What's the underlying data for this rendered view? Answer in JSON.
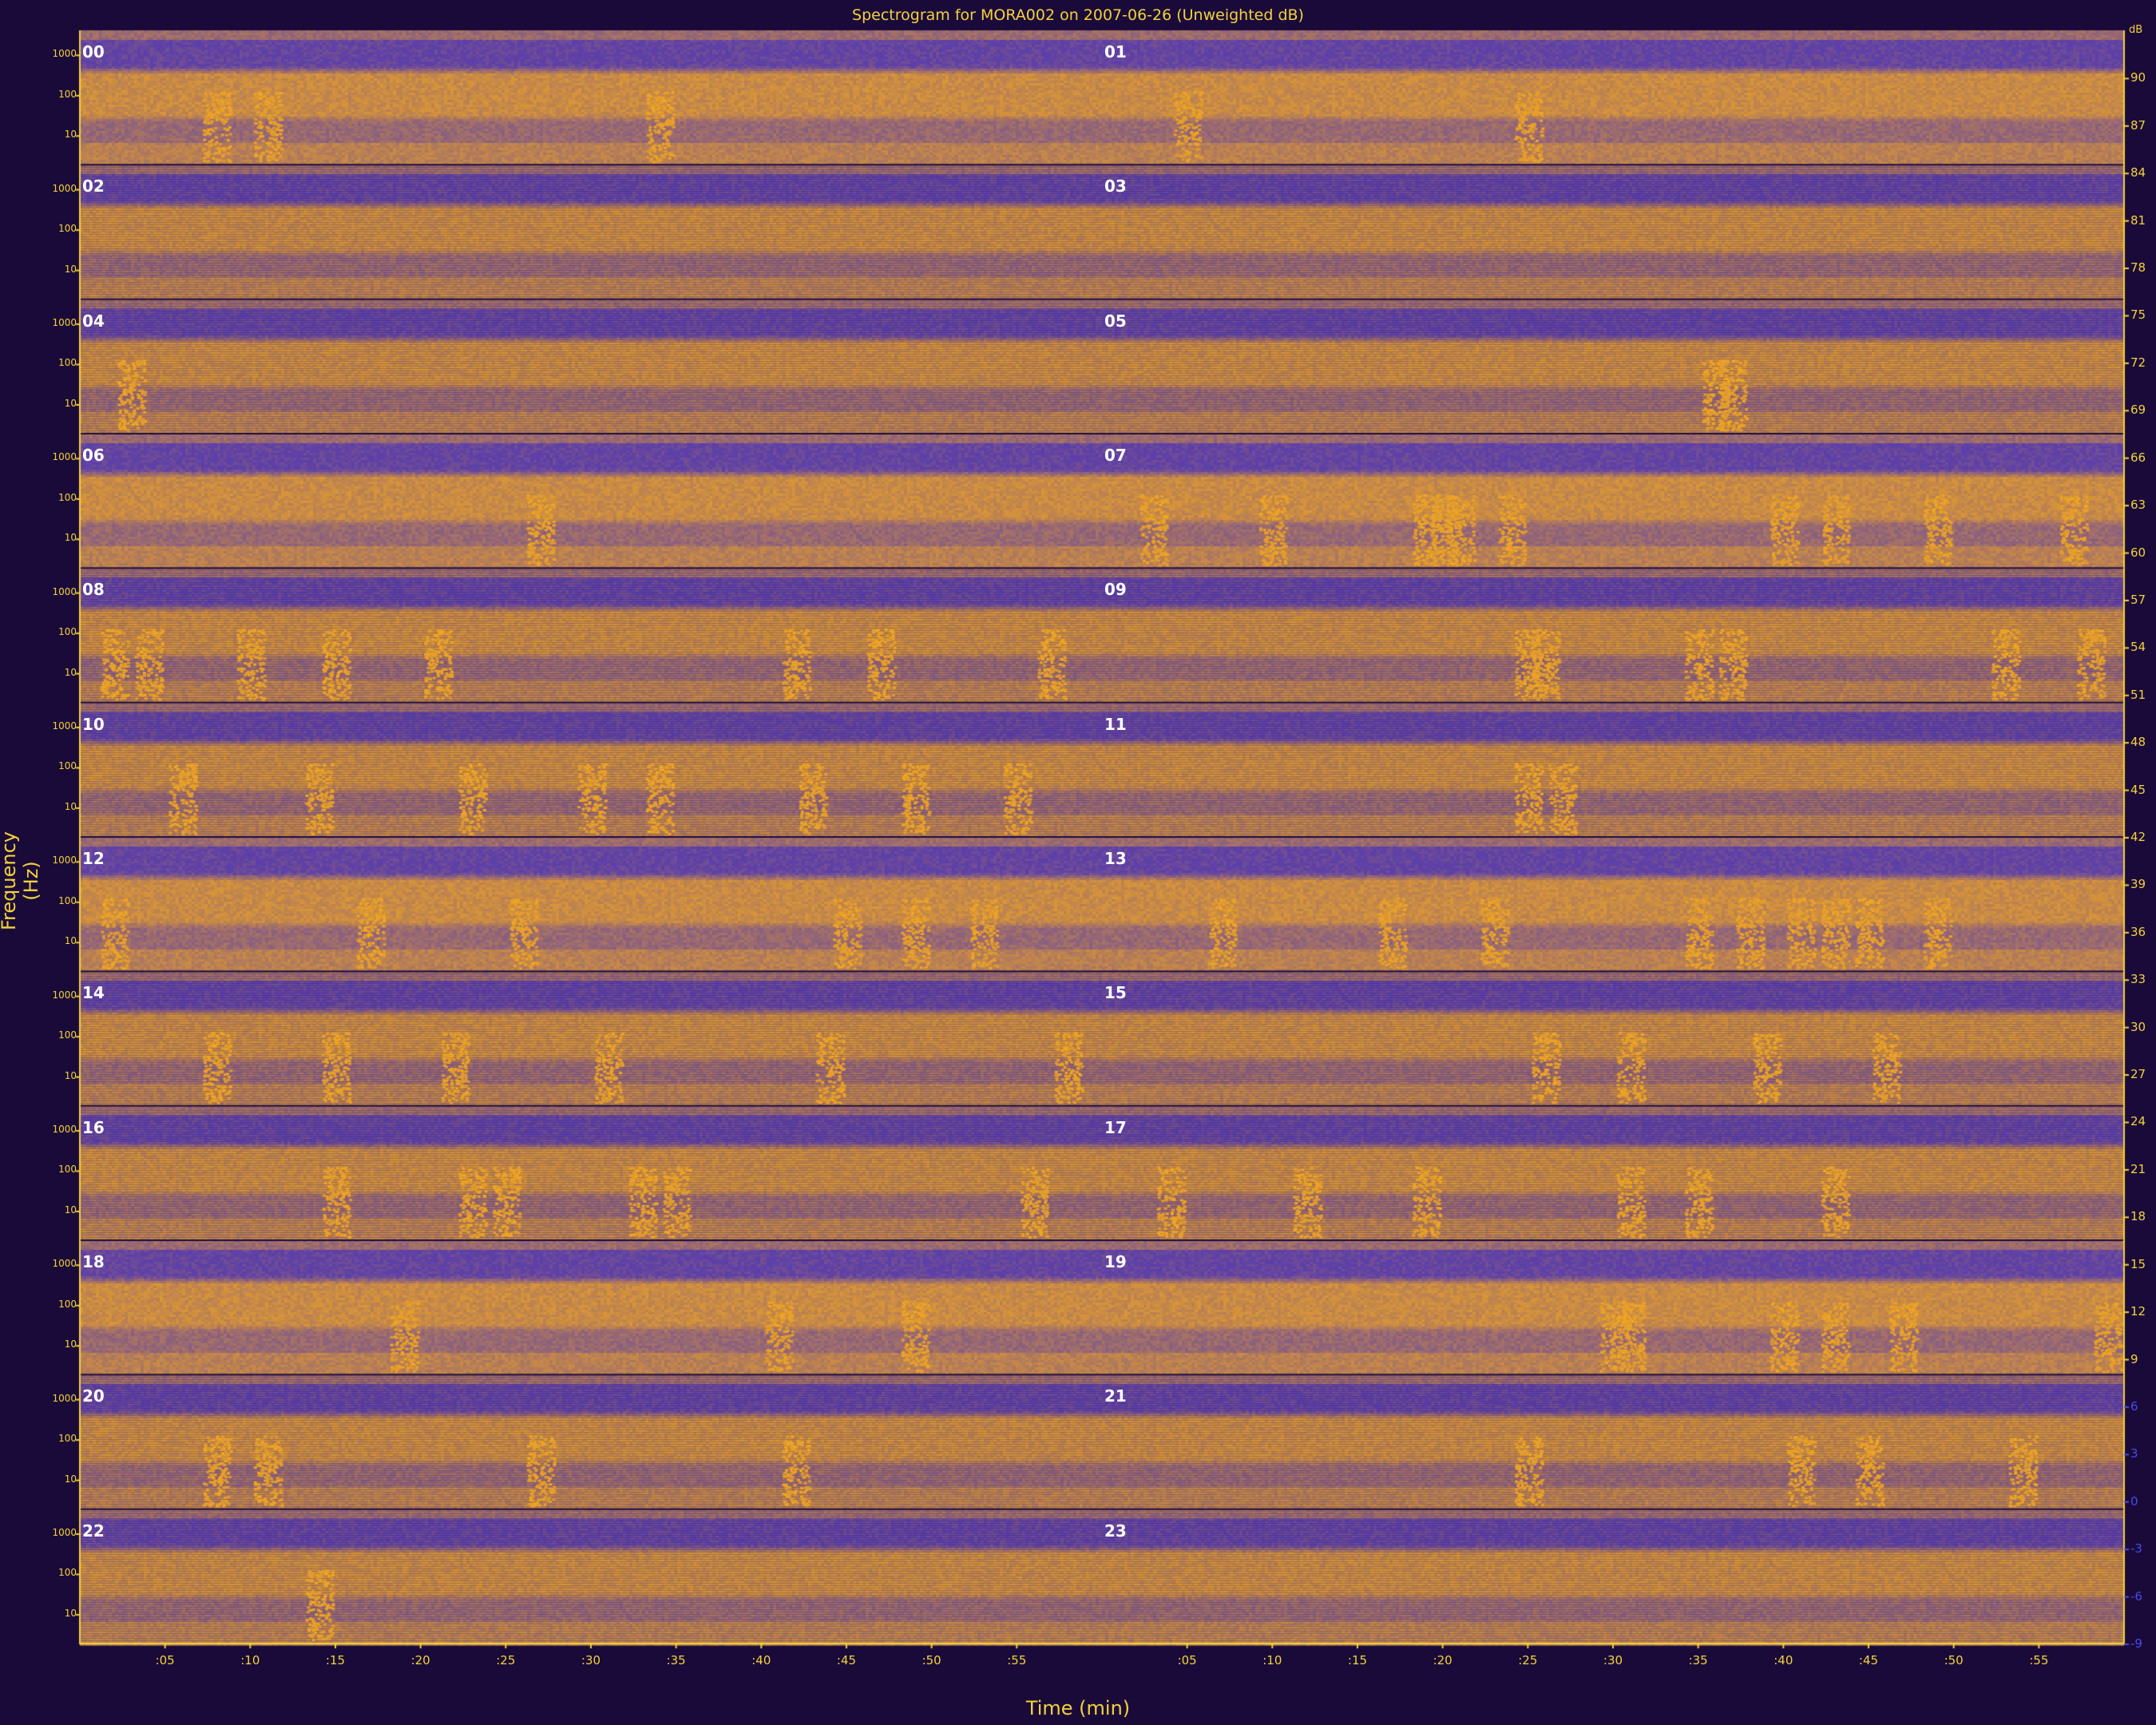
{
  "chart_data": {
    "type": "heatmap",
    "title": "Spectrogram for MORA002 on 2007-06-26 (Unweighted dB)",
    "xlabel": "Time (min)",
    "ylabel": "Frequency (Hz)",
    "hour_labels": [
      "00",
      "01",
      "02",
      "03",
      "04",
      "05",
      "06",
      "07",
      "08",
      "09",
      "10",
      "11",
      "12",
      "13",
      "14",
      "15",
      "16",
      "17",
      "18",
      "19",
      "20",
      "21",
      "22",
      "23"
    ],
    "frequency_ticks": [
      "1000",
      "100",
      "10"
    ],
    "time_ticks": [
      ":05",
      ":10",
      ":15",
      ":20",
      ":25",
      ":30",
      ":35",
      ":40",
      ":45",
      ":50",
      ":55"
    ],
    "colorbar_unit": "dB",
    "colorbar_ticks": [
      90,
      87,
      84,
      81,
      78,
      75,
      72,
      69,
      66,
      63,
      60,
      57,
      54,
      51,
      48,
      45,
      42,
      39,
      36,
      33,
      30,
      27,
      24,
      21,
      18,
      15,
      12,
      9,
      6,
      3,
      0,
      -3,
      -6,
      -9
    ],
    "colorbar_range": [
      -9,
      93
    ],
    "colors": {
      "low": "#5c3fa8",
      "high": "#f3a81f",
      "background": "#1a0a3a",
      "text": "#f2d23a"
    },
    "rows": 12,
    "columns_per_row": 2,
    "minutes_per_panel": 60,
    "events": {
      "00": [
        8,
        11,
        34
      ],
      "01": [
        5,
        25
      ],
      "04": [
        3
      ],
      "05": [
        36,
        37
      ],
      "06": [
        27
      ],
      "07": [
        3,
        10,
        19,
        20,
        21,
        24,
        40,
        43,
        49,
        57
      ],
      "08": [
        2,
        4,
        10,
        15,
        21,
        42,
        47,
        57
      ],
      "09": [
        25,
        26,
        35,
        37,
        53,
        58
      ],
      "10": [
        6,
        14,
        23,
        30,
        34,
        43,
        49,
        55
      ],
      "11": [
        25,
        27
      ],
      "12": [
        2,
        17,
        26,
        45,
        49,
        53
      ],
      "13": [
        7,
        17,
        23,
        35,
        38,
        41,
        43,
        45,
        49
      ],
      "14": [
        8,
        15,
        22,
        31,
        44,
        58
      ],
      "15": [
        26,
        31,
        39,
        46
      ],
      "16": [
        15,
        23,
        25,
        33,
        35,
        56
      ],
      "17": [
        4,
        12,
        19,
        31,
        35,
        43
      ],
      "18": [
        19,
        41,
        49
      ],
      "19": [
        30,
        31,
        40,
        43,
        47,
        59
      ],
      "20": [
        8,
        11,
        27,
        42
      ],
      "21": [
        25,
        41,
        45,
        54
      ],
      "22": [
        14
      ]
    }
  }
}
